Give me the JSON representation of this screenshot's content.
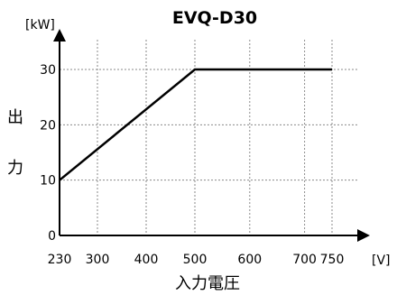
{
  "chart_data": {
    "type": "line",
    "title": "EVQ-D30",
    "ylabel": "出力",
    "xlabel": "入力電圧",
    "y_unit": "[kW]",
    "x_unit": "[V]",
    "x_ticks": [
      "230",
      "300",
      "400",
      "500",
      "600",
      "700",
      "750"
    ],
    "x_tick_values": [
      230,
      300,
      400,
      500,
      600,
      700,
      750
    ],
    "y_ticks": [
      "0",
      "10",
      "20",
      "30"
    ],
    "y_tick_values": [
      0,
      10,
      20,
      30
    ],
    "xlim": [
      230,
      750
    ],
    "ylim": [
      0,
      30
    ],
    "grid": true,
    "series": [
      {
        "x": [
          230,
          500,
          750
        ],
        "y": [
          10,
          30,
          30
        ]
      }
    ]
  }
}
